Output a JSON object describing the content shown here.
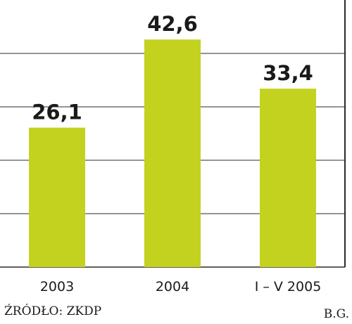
{
  "chart_data": {
    "type": "bar",
    "categories": [
      "2003",
      "2004",
      "I – V 2005"
    ],
    "values": [
      26.1,
      42.6,
      33.4
    ],
    "value_labels": [
      "26,1",
      "42,6",
      "33,4"
    ],
    "title": "",
    "xlabel": "",
    "ylabel": "",
    "ylim": [
      0,
      50
    ],
    "grid": true,
    "legend": "none"
  },
  "footer": {
    "source": "ŹRÓDŁO: ZKDP",
    "author": "B.G."
  },
  "colors": {
    "bar": "#c3d21f",
    "grid": "#2a2a2a",
    "text": "#1a1a1a"
  }
}
